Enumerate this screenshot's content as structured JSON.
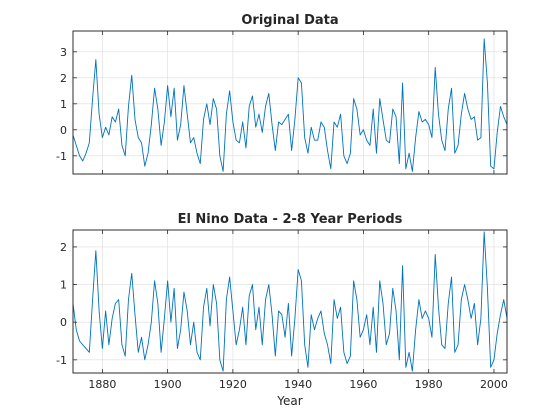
{
  "chart_data": [
    {
      "type": "line",
      "title": "Original Data",
      "xlabel": "",
      "ylabel": "",
      "xlim": [
        1871,
        2004
      ],
      "ylim": [
        -1.7,
        3.8
      ],
      "xticks": [
        1880,
        1900,
        1920,
        1940,
        1960,
        1980,
        2000
      ],
      "yticks": [
        -1,
        0,
        1,
        2,
        3
      ],
      "show_xticklabels": false,
      "grid": true,
      "color": "#0072bd",
      "series": [
        {
          "x": [
            1871,
            1872,
            1873,
            1874,
            1875,
            1876,
            1877,
            1878,
            1879,
            1880,
            1881,
            1882,
            1883,
            1884,
            1885,
            1886,
            1887,
            1888,
            1889,
            1890,
            1891,
            1892,
            1893,
            1894,
            1895,
            1896,
            1897,
            1898,
            1899,
            1900,
            1901,
            1902,
            1903,
            1904,
            1905,
            1906,
            1907,
            1908,
            1909,
            1910,
            1911,
            1912,
            1913,
            1914,
            1915,
            1916,
            1917,
            1918,
            1919,
            1920,
            1921,
            1922,
            1923,
            1924,
            1925,
            1926,
            1927,
            1928,
            1929,
            1930,
            1931,
            1932,
            1933,
            1934,
            1935,
            1936,
            1937,
            1938,
            1939,
            1940,
            1941,
            1942,
            1943,
            1944,
            1945,
            1946,
            1947,
            1948,
            1949,
            1950,
            1951,
            1952,
            1953,
            1954,
            1955,
            1956,
            1957,
            1958,
            1959,
            1960,
            1961,
            1962,
            1963,
            1964,
            1965,
            1966,
            1967,
            1968,
            1969,
            1970,
            1971,
            1972,
            1973,
            1974,
            1975,
            1976,
            1977,
            1978,
            1979,
            1980,
            1981,
            1982,
            1983,
            1984,
            1985,
            1986,
            1987,
            1988,
            1989,
            1990,
            1991,
            1992,
            1993,
            1994,
            1995,
            1996,
            1997,
            1998,
            1999,
            2000,
            2001,
            2002,
            2003,
            2004
          ],
          "y": [
            -0.2,
            -0.6,
            -1.0,
            -1.2,
            -0.9,
            -0.5,
            1.2,
            2.7,
            0.6,
            -0.3,
            0.1,
            -0.2,
            0.5,
            0.3,
            0.8,
            -0.6,
            -1.0,
            0.9,
            2.1,
            0.4,
            -0.3,
            -0.5,
            -1.4,
            -0.9,
            0.2,
            1.6,
            0.8,
            -0.6,
            0.3,
            1.7,
            0.5,
            1.6,
            -0.4,
            0.2,
            1.7,
            0.6,
            -0.5,
            -0.3,
            -0.9,
            -1.3,
            0.4,
            1.0,
            0.2,
            1.2,
            0.8,
            -1.0,
            -1.6,
            0.6,
            1.5,
            0.3,
            -0.4,
            -0.5,
            0.3,
            -0.7,
            0.9,
            1.3,
            0.1,
            0.6,
            -0.1,
            0.9,
            1.4,
            0.2,
            -0.8,
            0.3,
            0.2,
            0.4,
            0.6,
            -0.8,
            0.4,
            2.0,
            1.8,
            -0.3,
            -0.9,
            0.1,
            -0.4,
            -0.4,
            0.3,
            0.1,
            -0.8,
            -1.5,
            0.3,
            0.1,
            0.6,
            -1.0,
            -1.3,
            -0.9,
            1.2,
            0.8,
            -0.2,
            0.0,
            -0.4,
            -0.6,
            0.8,
            -0.9,
            1.2,
            0.4,
            -0.4,
            -0.5,
            0.8,
            0.5,
            -1.3,
            1.8,
            -1.5,
            -0.9,
            -1.6,
            -0.3,
            0.7,
            0.3,
            0.4,
            0.2,
            -0.3,
            2.4,
            0.6,
            -0.4,
            -0.8,
            0.8,
            1.6,
            -0.9,
            -0.6,
            0.6,
            1.4,
            0.8,
            0.4,
            0.5,
            -0.4,
            -0.3,
            3.5,
            1.8,
            -1.4,
            -1.5,
            -0.1,
            0.9,
            0.5,
            0.2
          ]
        }
      ]
    },
    {
      "type": "line",
      "title": "El Nino Data - 2-8 Year Periods",
      "xlabel": "Year",
      "ylabel": "",
      "xlim": [
        1871,
        2004
      ],
      "ylim": [
        -1.35,
        2.45
      ],
      "xticks": [
        1880,
        1900,
        1920,
        1940,
        1960,
        1980,
        2000
      ],
      "yticks": [
        -1,
        0,
        1,
        2
      ],
      "show_xticklabels": true,
      "grid": true,
      "color": "#0072bd",
      "series": [
        {
          "x": [
            1871,
            1872,
            1873,
            1874,
            1875,
            1876,
            1877,
            1878,
            1879,
            1880,
            1881,
            1882,
            1883,
            1884,
            1885,
            1886,
            1887,
            1888,
            1889,
            1890,
            1891,
            1892,
            1893,
            1894,
            1895,
            1896,
            1897,
            1898,
            1899,
            1900,
            1901,
            1902,
            1903,
            1904,
            1905,
            1906,
            1907,
            1908,
            1909,
            1910,
            1911,
            1912,
            1913,
            1914,
            1915,
            1916,
            1917,
            1918,
            1919,
            1920,
            1921,
            1922,
            1923,
            1924,
            1925,
            1926,
            1927,
            1928,
            1929,
            1930,
            1931,
            1932,
            1933,
            1934,
            1935,
            1936,
            1937,
            1938,
            1939,
            1940,
            1941,
            1942,
            1943,
            1944,
            1945,
            1946,
            1947,
            1948,
            1949,
            1950,
            1951,
            1952,
            1953,
            1954,
            1955,
            1956,
            1957,
            1958,
            1959,
            1960,
            1961,
            1962,
            1963,
            1964,
            1965,
            1966,
            1967,
            1968,
            1969,
            1970,
            1971,
            1972,
            1973,
            1974,
            1975,
            1976,
            1977,
            1978,
            1979,
            1980,
            1981,
            1982,
            1983,
            1984,
            1985,
            1986,
            1987,
            1988,
            1989,
            1990,
            1991,
            1992,
            1993,
            1994,
            1995,
            1996,
            1997,
            1998,
            1999,
            2000,
            2001,
            2002,
            2003,
            2004
          ],
          "y": [
            0.5,
            -0.2,
            -0.5,
            -0.6,
            -0.7,
            -0.8,
            0.6,
            1.9,
            0.3,
            -0.7,
            0.3,
            -0.6,
            0.1,
            0.5,
            0.6,
            -0.6,
            -0.9,
            0.6,
            1.3,
            0.2,
            -0.8,
            -0.4,
            -1.0,
            -0.6,
            0.0,
            1.1,
            0.5,
            -0.8,
            0.1,
            1.1,
            0.0,
            0.9,
            -0.7,
            -0.2,
            0.8,
            0.3,
            -0.6,
            0.0,
            -0.8,
            -1.0,
            0.4,
            0.9,
            -0.1,
            1.0,
            0.5,
            -1.0,
            -1.3,
            0.6,
            1.2,
            0.3,
            -0.6,
            -0.2,
            0.4,
            -0.6,
            0.7,
            1.0,
            -0.2,
            0.4,
            -0.6,
            0.6,
            1.0,
            0.2,
            -0.9,
            0.3,
            0.2,
            -0.4,
            0.5,
            -0.9,
            0.1,
            1.4,
            1.1,
            -0.6,
            -1.2,
            0.2,
            -0.2,
            0.1,
            0.3,
            -0.3,
            -0.6,
            -1.1,
            0.6,
            0.1,
            0.4,
            -0.8,
            -1.1,
            -0.9,
            1.1,
            0.6,
            -0.4,
            -0.2,
            0.2,
            -0.6,
            0.4,
            -0.8,
            1.1,
            0.5,
            -0.6,
            -0.3,
            0.9,
            0.3,
            -1.0,
            1.5,
            -1.2,
            -0.8,
            -1.3,
            -0.2,
            0.6,
            0.1,
            0.3,
            0.1,
            -0.4,
            1.8,
            0.4,
            -0.6,
            -0.7,
            0.5,
            1.2,
            -0.8,
            -0.6,
            0.6,
            1.0,
            0.6,
            0.1,
            0.5,
            -0.6,
            0.1,
            2.4,
            0.9,
            -1.2,
            -1.0,
            -0.3,
            0.2,
            0.6,
            0.1
          ]
        }
      ]
    }
  ]
}
